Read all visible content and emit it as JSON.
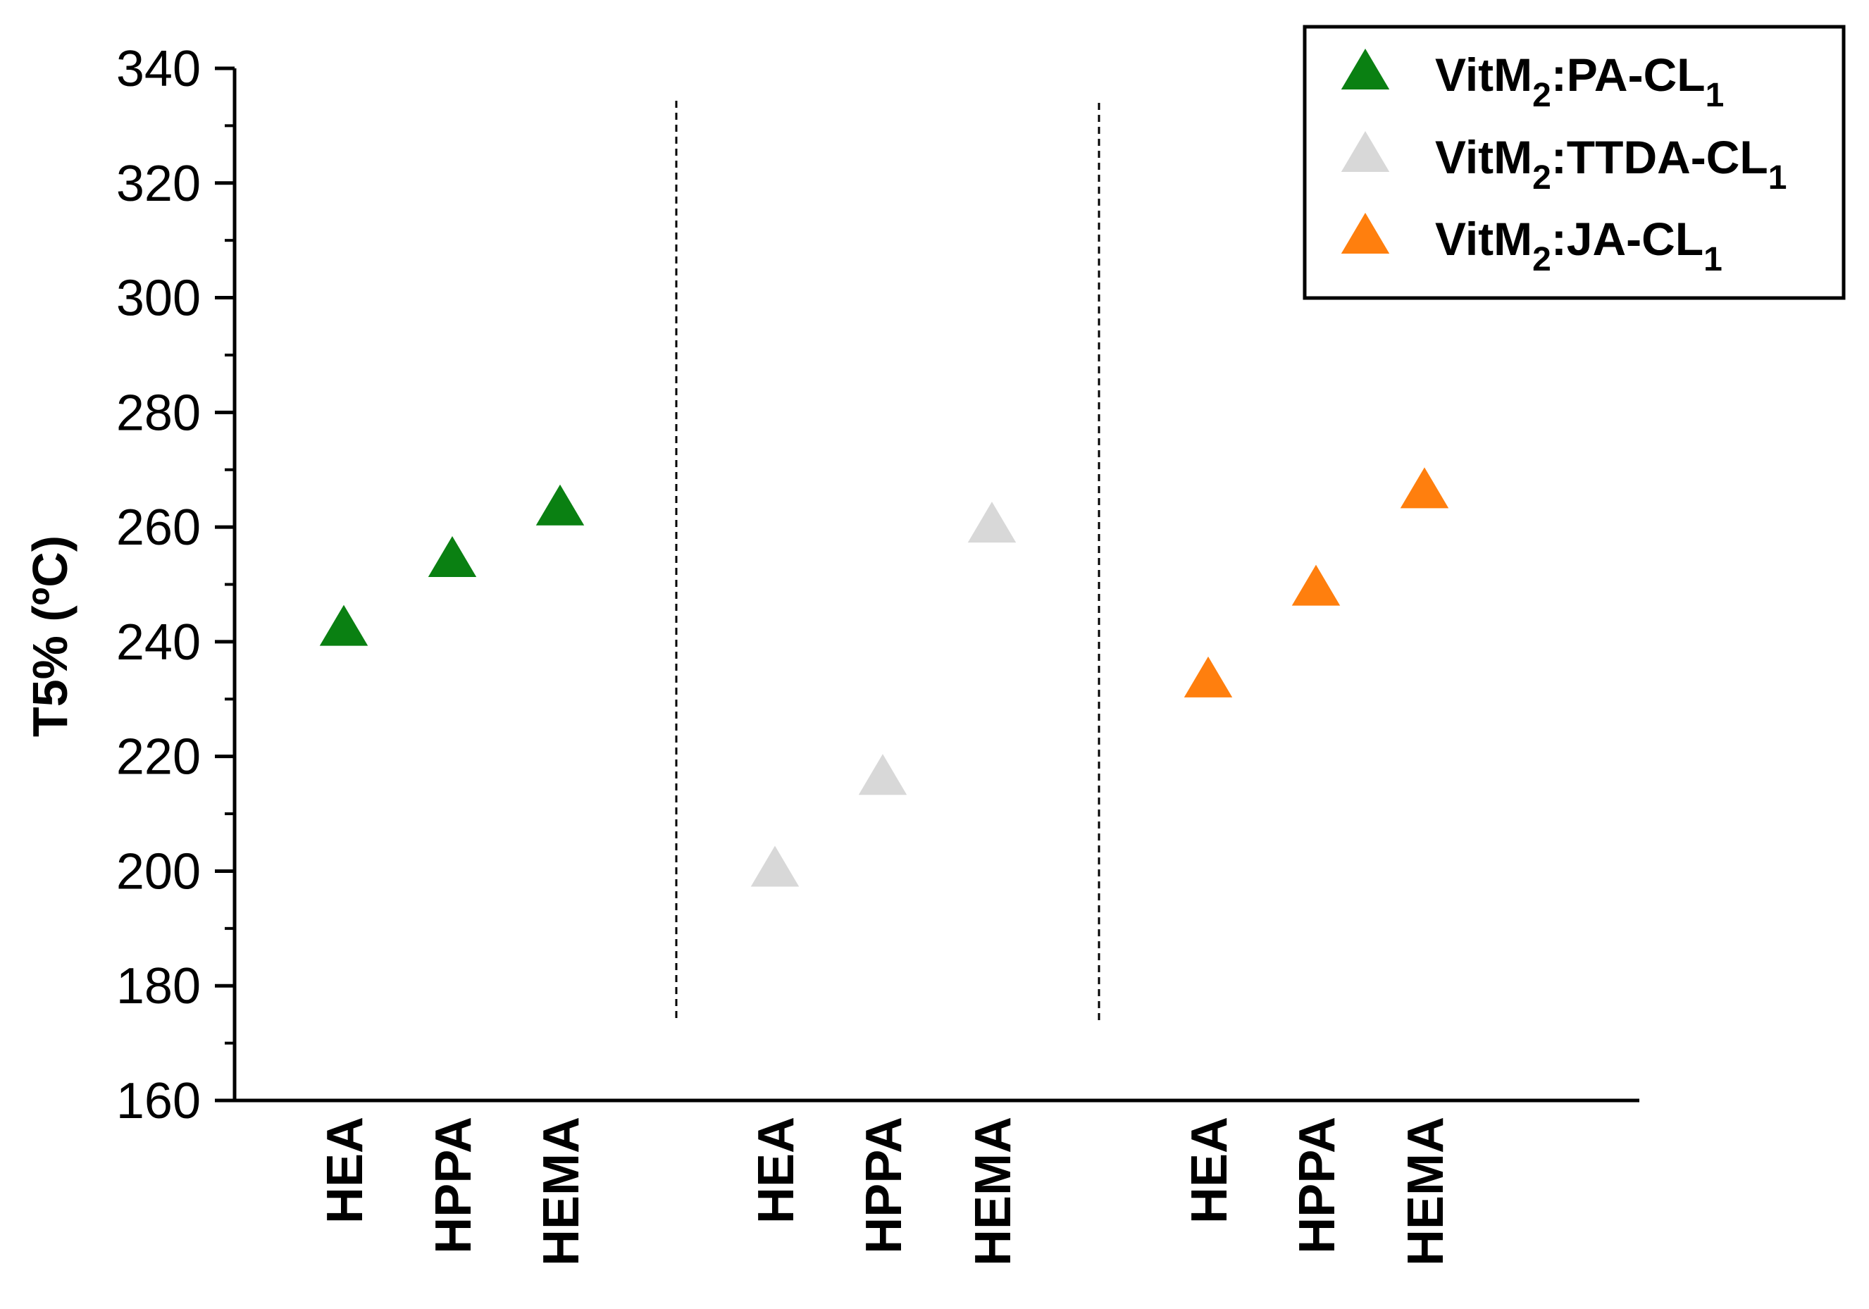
{
  "chart_data": {
    "type": "scatter",
    "ylabel": "T5% (ºC)",
    "xlabel": "",
    "ylim": [
      160,
      340
    ],
    "yticks": [
      160,
      180,
      200,
      220,
      240,
      260,
      280,
      300,
      320,
      340
    ],
    "y_tick_labels": [
      "160",
      "180",
      "200",
      "220",
      "240",
      "260",
      "280",
      "300",
      "320",
      "340"
    ],
    "grid": false,
    "legend_position": "top-right",
    "marker": "triangle",
    "group_separators": "dashed vertical lines between groups",
    "series": [
      {
        "name": "VitM2:PA-CL1",
        "legend_parts": {
          "base": "VitM",
          "sub1": "2",
          "mid": ":PA-CL",
          "sub2": "1"
        },
        "color": "#0a8012",
        "categories": [
          "HEA",
          "HPPA",
          "HEMA"
        ],
        "values": [
          242,
          254,
          263
        ]
      },
      {
        "name": "VitM2:TTDA-CL1",
        "legend_parts": {
          "base": "VitM",
          "sub1": "2",
          "mid": ":TTDA-CL",
          "sub2": "1"
        },
        "color": "#d8d8d8",
        "categories": [
          "HEA",
          "HPPA",
          "HEMA"
        ],
        "values": [
          200,
          216,
          260
        ]
      },
      {
        "name": "VitM2:JA-CL1",
        "legend_parts": {
          "base": "VitM",
          "sub1": "2",
          "mid": ":JA-CL",
          "sub2": "1"
        },
        "color": "#ff7f0e",
        "categories": [
          "HEA",
          "HPPA",
          "HEMA"
        ],
        "values": [
          233,
          249,
          266
        ]
      }
    ]
  }
}
